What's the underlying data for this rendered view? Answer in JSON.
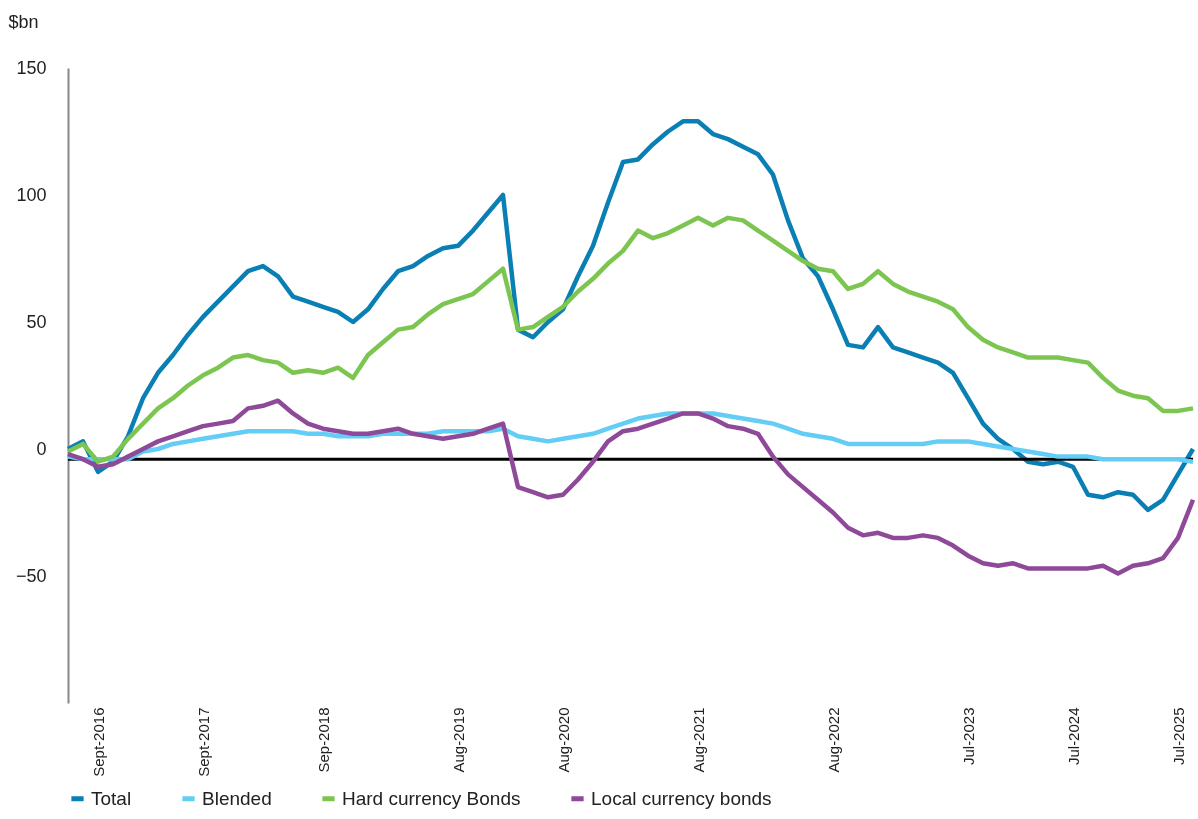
{
  "chart_data": {
    "type": "line",
    "ylabel": "$bn",
    "ylim": [
      -100,
      150
    ],
    "yticks": [
      -50,
      0,
      50,
      100,
      150
    ],
    "legend": "bottom",
    "categories": [
      null,
      null,
      "Sept-2016",
      null,
      null,
      null,
      null,
      null,
      null,
      "Sept-2017",
      null,
      null,
      null,
      null,
      null,
      null,
      null,
      "Sep-2018",
      null,
      null,
      null,
      null,
      null,
      null,
      null,
      null,
      "Aug-2019",
      null,
      null,
      null,
      null,
      null,
      null,
      "Aug-2020",
      null,
      null,
      null,
      null,
      null,
      null,
      null,
      null,
      "Aug-2021",
      null,
      null,
      null,
      null,
      null,
      null,
      null,
      null,
      "Aug-2022",
      null,
      null,
      null,
      null,
      null,
      null,
      null,
      null,
      "Jul-2023",
      null,
      null,
      null,
      null,
      null,
      null,
      "Jul-2024",
      null,
      null,
      null,
      null,
      null,
      null,
      "Jul-2025",
      null
    ],
    "series": [
      {
        "name": "Total",
        "color": "#0a7fb4",
        "values": [
          0,
          3,
          -9,
          -5,
          5,
          20,
          30,
          37,
          45,
          52,
          58,
          64,
          70,
          72,
          68,
          60,
          58,
          56,
          54,
          50,
          55,
          63,
          70,
          72,
          76,
          79,
          80,
          86,
          93,
          100,
          47,
          44,
          50,
          55,
          68,
          80,
          97,
          113,
          114,
          120,
          125,
          129,
          129,
          124,
          122,
          119,
          116,
          108,
          90,
          75,
          68,
          55,
          41,
          40,
          48,
          40,
          38,
          36,
          34,
          30,
          20,
          10,
          4,
          0,
          -5,
          -6,
          -5,
          -7,
          -18,
          -19,
          -17,
          -18,
          -24,
          -20,
          -10,
          0
        ]
      },
      {
        "name": "Blended",
        "color": "#63cdf5",
        "values": [
          -3,
          -4,
          -4,
          -4,
          -4,
          -1,
          0,
          2,
          3,
          4,
          5,
          6,
          7,
          7,
          7,
          7,
          6,
          6,
          5,
          5,
          5,
          6,
          6,
          6,
          6,
          7,
          7,
          7,
          7,
          8,
          5,
          4,
          3,
          4,
          5,
          6,
          8,
          10,
          12,
          13,
          14,
          14,
          14,
          14,
          13,
          12,
          11,
          10,
          8,
          6,
          5,
          4,
          2,
          2,
          2,
          2,
          2,
          2,
          3,
          3,
          3,
          2,
          1,
          0,
          -1,
          -2,
          -3,
          -3,
          -3,
          -4,
          -4,
          -4,
          -4,
          -4,
          -4,
          -5
        ]
      },
      {
        "name": "Hard currency Bonds",
        "color": "#7dc551",
        "values": [
          -1,
          2,
          -5,
          -3,
          4,
          10,
          16,
          20,
          25,
          29,
          32,
          36,
          37,
          35,
          34,
          30,
          31,
          30,
          32,
          28,
          37,
          42,
          47,
          48,
          53,
          57,
          59,
          61,
          66,
          71,
          47,
          48,
          52,
          56,
          62,
          67,
          73,
          78,
          86,
          83,
          85,
          88,
          91,
          88,
          91,
          90,
          86,
          82,
          78,
          74,
          71,
          70,
          63,
          65,
          70,
          65,
          62,
          60,
          58,
          55,
          48,
          43,
          40,
          38,
          36,
          36,
          36,
          35,
          34,
          28,
          23,
          21,
          20,
          15,
          15,
          16
        ]
      },
      {
        "name": "Local currency bonds",
        "color": "#8e4a98",
        "values": [
          -2,
          -4,
          -7,
          -6,
          -3,
          0,
          3,
          5,
          7,
          9,
          10,
          11,
          16,
          17,
          19,
          14,
          10,
          8,
          7,
          6,
          6,
          7,
          8,
          6,
          5,
          4,
          5,
          6,
          8,
          10,
          -15,
          -17,
          -19,
          -18,
          -12,
          -5,
          3,
          7,
          8,
          10,
          12,
          14,
          14,
          12,
          9,
          8,
          6,
          -3,
          -10,
          -15,
          -20,
          -25,
          -31,
          -34,
          -33,
          -35,
          -35,
          -34,
          -35,
          -38,
          -42,
          -45,
          -46,
          -45,
          -47,
          -47,
          -47,
          -47,
          -47,
          -46,
          -49,
          -46,
          -45,
          -43,
          -35,
          -20
        ]
      }
    ],
    "ref_lines": [
      {
        "axis": "y",
        "value": -4,
        "color": "#000000"
      }
    ]
  }
}
